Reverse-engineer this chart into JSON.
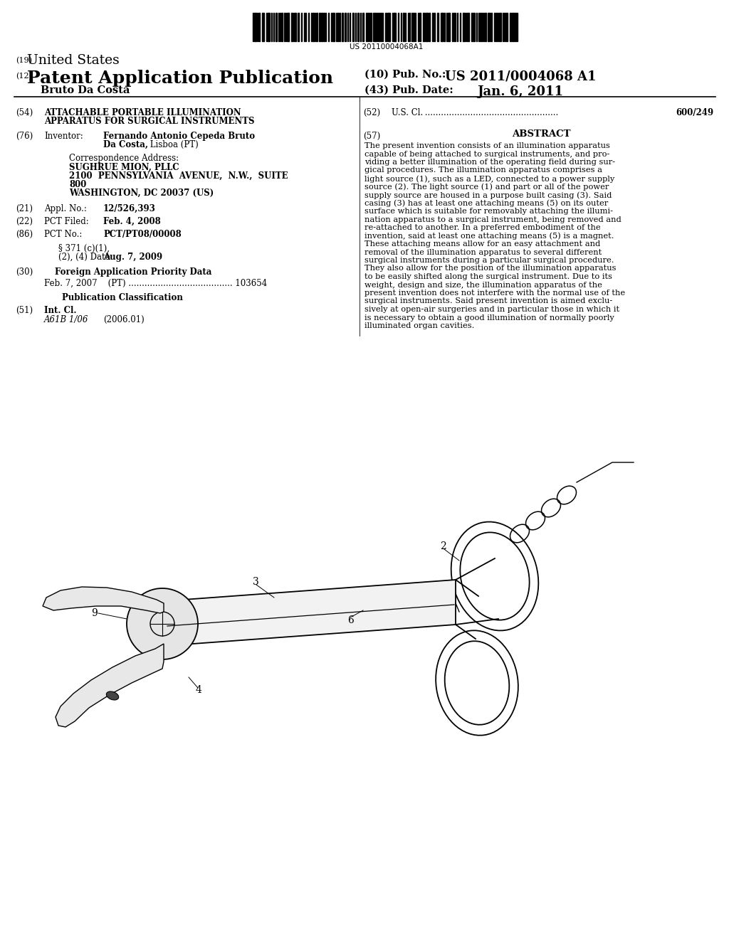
{
  "background_color": "#ffffff",
  "barcode_text": "US 20110004068A1",
  "title_19_prefix": "(19)",
  "title_19": "United States",
  "title_12_prefix": "(12)",
  "title_12": "Patent Application Publication",
  "pub_no_label": "(10) Pub. No.:",
  "pub_no_value": "US 2011/0004068 A1",
  "pub_date_label": "(43) Pub. Date:",
  "pub_date_value": "Jan. 6, 2011",
  "inventor_name": "Bruto Da Costa",
  "abstract_lines": [
    "The present invention consists of an illumination apparatus",
    "capable of being attached to surgical instruments, and pro-",
    "viding a better illumination of the operating field during sur-",
    "gical procedures. The illumination apparatus comprises a",
    "light source (1), such as a LED, connected to a power supply",
    "source (2). The light source (1) and part or all of the power",
    "supply source are housed in a purpose built casing (3). Said",
    "casing (3) has at least one attaching means (5) on its outer",
    "surface which is suitable for removably attaching the illumi-",
    "nation apparatus to a surgical instrument, being removed and",
    "re-attached to another. In a preferred embodiment of the",
    "invention, said at least one attaching means (5) is a magnet.",
    "These attaching means allow for an easy attachment and",
    "removal of the illumination apparatus to several different",
    "surgical instruments during a particular surgical procedure.",
    "They also allow for the position of the illumination apparatus",
    "to be easily shifted along the surgical instrument. Due to its",
    "weight, design and size, the illumination apparatus of the",
    "present invention does not interfere with the normal use of the",
    "surgical instruments. Said present invention is aimed exclu-",
    "sively at open-air surgeries and in particular those in which it",
    "is necessary to obtain a good illumination of normally poorly",
    "illuminated organ cavities."
  ]
}
